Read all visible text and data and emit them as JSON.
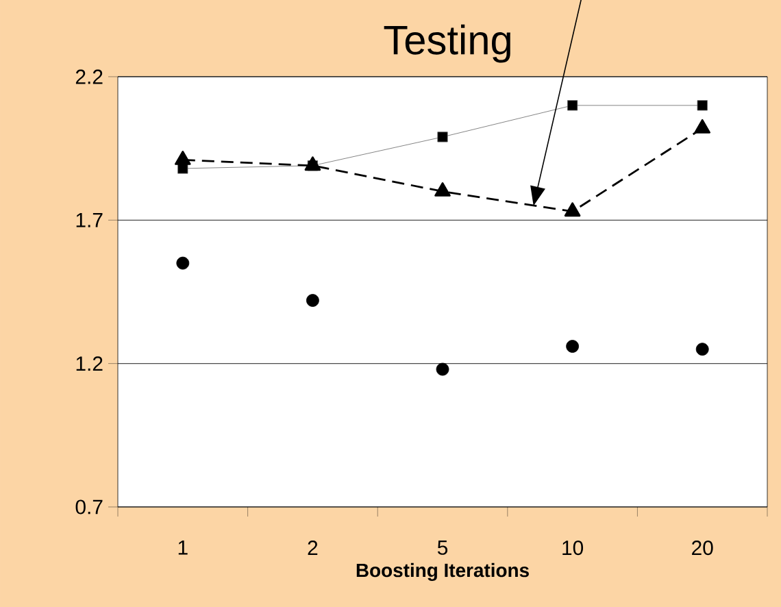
{
  "chart_data": {
    "type": "line",
    "xlabel": "Boosting Iterations",
    "categories": [
      "1",
      "2",
      "5",
      "10",
      "20"
    ],
    "series": [
      {
        "color": "#000000",
        "marker": "square",
        "line_style": "solid",
        "values": [
          1.88,
          1.89,
          1.99,
          2.1,
          2.1
        ]
      },
      {
        "color": "#000000",
        "marker": "triangle",
        "line_style": "dashed",
        "values": [
          1.91,
          1.89,
          1.8,
          1.73,
          2.02
        ]
      },
      {
        "type": "scatter",
        "color": "#000000",
        "marker": "circle",
        "values": [
          1.55,
          1.42,
          1.18,
          1.26,
          1.25
        ]
      }
    ],
    "ylim": [
      0.7,
      2.2
    ],
    "yticks": [
      0.7,
      1.2,
      1.7,
      2.2
    ],
    "grid": "y",
    "annotations": [
      "Testing"
    ]
  }
}
